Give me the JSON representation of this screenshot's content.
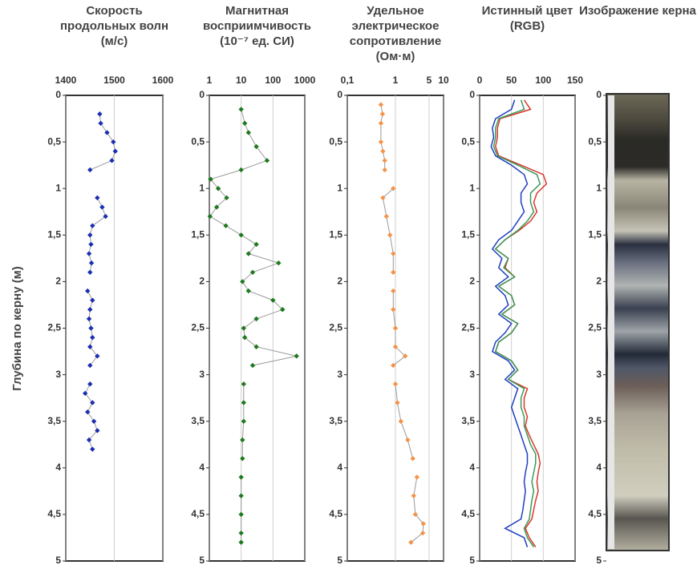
{
  "chart_data": [
    {
      "type": "line",
      "markers": true,
      "title": "Скорость продольных волн (м/с)",
      "ylabel": "Глубина по керну (м)",
      "color": "#1a2fb0",
      "xlim": [
        1400,
        1600
      ],
      "xticks": [
        1400,
        1500,
        1600
      ],
      "ylim": [
        0,
        5
      ],
      "yticks": [
        0,
        {
          "value": 0.5,
          "label": "0,5"
        },
        1,
        {
          "value": 1.5,
          "label": "1,5"
        },
        2,
        {
          "value": 2.5,
          "label": "2,5"
        },
        3,
        {
          "value": 3.5,
          "label": "3,5"
        },
        4,
        {
          "value": 4.5,
          "label": "4,5"
        },
        5
      ],
      "depth": [
        0.2,
        0.3,
        0.4,
        0.5,
        0.6,
        0.7,
        0.8,
        0.9,
        1.0,
        1.1,
        1.2,
        1.3,
        1.4,
        1.5,
        1.6,
        1.7,
        1.8,
        1.9,
        2.0,
        2.1,
        2.2,
        2.3,
        2.4,
        2.5,
        2.6,
        2.7,
        2.8,
        2.9,
        3.0,
        3.1,
        3.2,
        3.3,
        3.4,
        3.5,
        3.6,
        3.7,
        3.8
      ],
      "values": [
        1470,
        1472,
        1485,
        1498,
        1502,
        1495,
        1450,
        null,
        null,
        1465,
        1475,
        1482,
        1455,
        1450,
        1452,
        1448,
        1453,
        1450,
        null,
        1445,
        1455,
        1450,
        1448,
        1452,
        1455,
        1450,
        1465,
        1450,
        null,
        1450,
        1440,
        1455,
        1445,
        1458,
        1465,
        1448,
        1455
      ]
    },
    {
      "type": "line",
      "markers": true,
      "log": true,
      "title": "Магнитная восприимчивость (10⁻⁷ ед. СИ)",
      "color": "#1e7a1e",
      "xlim": [
        1,
        1000
      ],
      "xticks": [
        1,
        10,
        100,
        1000
      ],
      "ylim": [
        0,
        5
      ],
      "yticks": [
        0,
        {
          "value": 0.5,
          "label": "0,5"
        },
        1,
        {
          "value": 1.5,
          "label": "1,5"
        },
        2,
        {
          "value": 2.5,
          "label": "2,5"
        },
        3,
        {
          "value": 3.5,
          "label": "3,5"
        },
        4,
        {
          "value": 4.5,
          "label": "4,5"
        },
        5
      ],
      "depth": [
        0.15,
        0.3,
        0.4,
        0.55,
        0.7,
        0.8,
        0.9,
        1.0,
        1.1,
        1.2,
        1.3,
        1.4,
        1.5,
        1.6,
        1.7,
        1.8,
        1.9,
        2.0,
        2.1,
        2.2,
        2.3,
        2.4,
        2.5,
        2.6,
        2.7,
        2.8,
        2.9,
        3.0,
        3.1,
        3.3,
        3.5,
        3.7,
        3.9,
        4.0,
        4.1,
        4.3,
        4.5,
        4.7,
        4.8
      ],
      "values": [
        10,
        13,
        17,
        30,
        65,
        10,
        1.1,
        1.9,
        3.5,
        1.7,
        1.05,
        3.3,
        10,
        30,
        17,
        150,
        23,
        11,
        17,
        100,
        200,
        30,
        12,
        13,
        30,
        550,
        23,
        null,
        12,
        12,
        12,
        11,
        11,
        null,
        10,
        10,
        10,
        10,
        10
      ]
    },
    {
      "type": "line",
      "markers": true,
      "log": true,
      "title": "Удельное электрическое сопротивление (Ом·м)",
      "color": "#f4934a",
      "xlim": [
        0.1,
        10
      ],
      "xticks": [
        {
          "value": 0.1,
          "label": "0,1"
        },
        1,
        5,
        10
      ],
      "ylim": [
        0,
        5
      ],
      "yticks": [
        0,
        {
          "value": 0.5,
          "label": "0,5"
        },
        1,
        {
          "value": 1.5,
          "label": "1,5"
        },
        2,
        {
          "value": 2.5,
          "label": "2,5"
        },
        3,
        {
          "value": 3.5,
          "label": "3,5"
        },
        4,
        {
          "value": 4.5,
          "label": "4,5"
        },
        5
      ],
      "depth": [
        0.1,
        0.2,
        0.3,
        0.5,
        0.6,
        0.7,
        0.8,
        0.9,
        1.0,
        1.1,
        1.3,
        1.5,
        1.7,
        1.9,
        2.0,
        2.1,
        2.3,
        2.5,
        2.7,
        2.8,
        2.9,
        3.0,
        3.1,
        3.3,
        3.5,
        3.7,
        3.9,
        4.0,
        4.1,
        4.3,
        4.5,
        4.6,
        4.7,
        4.8
      ],
      "values": [
        0.5,
        0.54,
        0.5,
        0.5,
        0.55,
        0.6,
        0.6,
        null,
        0.9,
        0.55,
        0.65,
        0.77,
        0.9,
        0.9,
        null,
        0.9,
        0.9,
        1.0,
        1.0,
        1.6,
        0.9,
        null,
        1.0,
        1.1,
        1.3,
        1.8,
        2.3,
        null,
        2.8,
        2.4,
        2.6,
        3.8,
        3.7,
        2.1
      ]
    },
    {
      "type": "line",
      "title": "Истинный цвет (RGB)",
      "xlim": [
        0,
        150
      ],
      "xticks": [
        0,
        50,
        100,
        150
      ],
      "ylim": [
        0,
        5
      ],
      "yticks": [
        0,
        {
          "value": 0.5,
          "label": "0,5"
        },
        1,
        {
          "value": 1.5,
          "label": "1,5"
        },
        2,
        {
          "value": 2.5,
          "label": "2,5"
        },
        3,
        {
          "value": 3.5,
          "label": "3,5"
        },
        4,
        {
          "value": 4.5,
          "label": "4,5"
        },
        5
      ],
      "depth": [
        0.05,
        0.15,
        0.25,
        0.35,
        0.45,
        0.55,
        0.65,
        0.75,
        0.85,
        0.95,
        1.05,
        1.15,
        1.25,
        1.35,
        1.45,
        1.55,
        1.65,
        1.75,
        1.85,
        1.95,
        2.05,
        2.15,
        2.25,
        2.35,
        2.45,
        2.55,
        2.65,
        2.75,
        2.85,
        2.95,
        3.05,
        3.15,
        3.25,
        3.35,
        3.45,
        3.55,
        3.65,
        3.75,
        3.85,
        3.95,
        4.05,
        4.15,
        4.25,
        4.35,
        4.45,
        4.55,
        4.65,
        4.75,
        4.85
      ],
      "series": [
        {
          "color": "#d9382a",
          "values": [
            70,
            80,
            32,
            28,
            28,
            25,
            30,
            65,
            100,
            105,
            90,
            85,
            90,
            80,
            62,
            40,
            25,
            45,
            40,
            55,
            30,
            50,
            55,
            35,
            60,
            50,
            30,
            25,
            50,
            60,
            45,
            75,
            70,
            70,
            75,
            72,
            78,
            85,
            92,
            95,
            92,
            90,
            92,
            88,
            85,
            82,
            72,
            78,
            88
          ]
        },
        {
          "color": "#3a9a5a",
          "values": [
            65,
            70,
            30,
            25,
            25,
            22,
            28,
            60,
            90,
            95,
            80,
            80,
            85,
            75,
            60,
            40,
            25,
            45,
            38,
            55,
            30,
            50,
            55,
            35,
            60,
            50,
            30,
            25,
            50,
            60,
            45,
            70,
            65,
            65,
            70,
            70,
            75,
            80,
            88,
            88,
            85,
            82,
            85,
            82,
            80,
            78,
            70,
            75,
            85
          ]
        },
        {
          "color": "#1f3fbf",
          "values": [
            55,
            50,
            25,
            20,
            22,
            18,
            25,
            50,
            70,
            75,
            65,
            65,
            70,
            60,
            50,
            30,
            20,
            35,
            30,
            45,
            25,
            40,
            45,
            30,
            50,
            40,
            25,
            20,
            45,
            55,
            40,
            60,
            55,
            50,
            55,
            60,
            65,
            70,
            75,
            75,
            72,
            70,
            72,
            70,
            68,
            65,
            40,
            70,
            75
          ]
        }
      ]
    },
    {
      "type": "image",
      "title": "Изображение керна",
      "ylim": [
        0,
        5
      ],
      "yticks": [
        0,
        {
          "value": 0.5,
          "label": "0,5"
        },
        1,
        {
          "value": 1.5,
          "label": "1,5"
        },
        2,
        {
          "value": 2.5,
          "label": "2,5"
        },
        3,
        {
          "value": 3.5,
          "label": "3,5"
        },
        4,
        {
          "value": 4.5,
          "label": "4,5"
        },
        5
      ]
    }
  ]
}
